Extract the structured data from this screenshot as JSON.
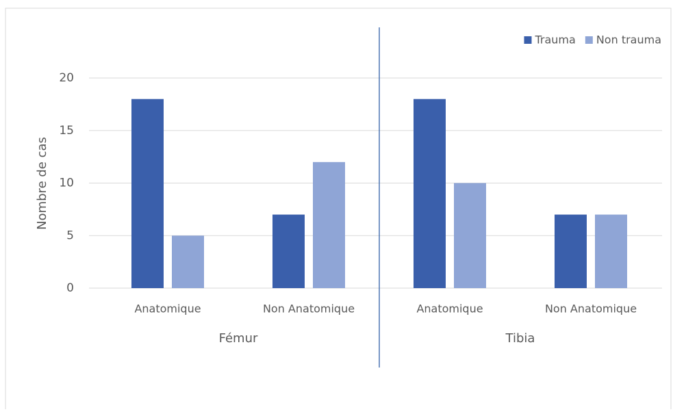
{
  "chart_data": {
    "type": "bar",
    "y_label": "Nombre de cas",
    "categories": [
      "Anatomique",
      "Non Anatomique",
      "Anatomique",
      "Non Anatomique"
    ],
    "groups": [
      "Fémur",
      "Tibia"
    ],
    "series": [
      {
        "name": "Trauma",
        "color": "#3a5fab",
        "values": [
          18,
          7,
          18,
          7
        ]
      },
      {
        "name": "Non trauma",
        "color": "#8fa5d6",
        "values": [
          5,
          12,
          10,
          7
        ]
      }
    ],
    "ylim": [
      0,
      20
    ],
    "yticks": [
      0,
      5,
      10,
      15,
      20
    ],
    "grid": true,
    "legend": "top-right"
  }
}
